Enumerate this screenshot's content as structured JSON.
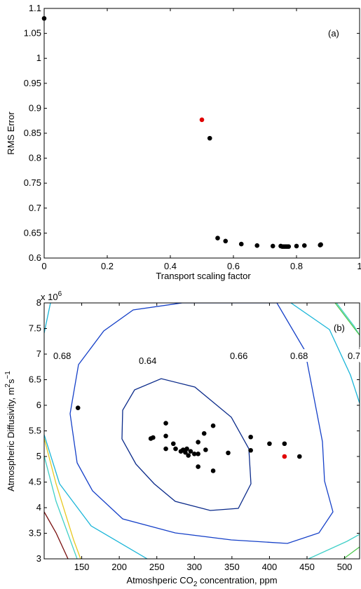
{
  "chart_data": [
    {
      "type": "scatter",
      "panel_label": "(a)",
      "xlabel": "Transport scaling factor",
      "ylabel": "RMS Error",
      "xlim": [
        0,
        1
      ],
      "ylim": [
        0.6,
        1.1
      ],
      "xticks": [
        "0",
        "0.2",
        "0.4",
        "0.6",
        "0.8",
        "1"
      ],
      "yticks": [
        "0.6",
        "0.65",
        "0.7",
        "0.75",
        "0.8",
        "0.85",
        "0.9",
        "0.95",
        "1",
        "1.05",
        "1.1"
      ],
      "colors": {
        "points": "#000000",
        "highlight": "#e00000"
      },
      "points": [
        [
          0.0,
          1.08
        ],
        [
          0.525,
          0.84
        ],
        [
          0.55,
          0.64
        ],
        [
          0.575,
          0.634
        ],
        [
          0.625,
          0.628
        ],
        [
          0.675,
          0.625
        ],
        [
          0.725,
          0.624
        ],
        [
          0.75,
          0.624
        ],
        [
          0.755,
          0.623
        ],
        [
          0.76,
          0.623
        ],
        [
          0.765,
          0.623
        ],
        [
          0.77,
          0.623
        ],
        [
          0.775,
          0.623
        ],
        [
          0.8,
          0.624
        ],
        [
          0.825,
          0.625
        ],
        [
          0.875,
          0.626
        ],
        [
          0.877,
          0.627
        ]
      ],
      "highlight": [
        [
          0.5,
          0.877
        ]
      ]
    },
    {
      "type": "contour",
      "panel_label": "(b)",
      "xlabel_pre": "Atmoshperic CO",
      "xlabel_sub": "2",
      "xlabel_post": " concentration, ppm",
      "ylabel_pre": "Atmospheric Diffusivity, m",
      "ylabel_sup1": "2",
      "ylabel_mid": "s",
      "ylabel_sup2": "−1",
      "exponent_pre": "x 10",
      "exponent_sup": "6",
      "xlim": [
        100,
        520
      ],
      "ylim": [
        3,
        8
      ],
      "xticks": [
        "150",
        "200",
        "250",
        "300",
        "350",
        "400",
        "450",
        "500"
      ],
      "yticks": [
        "3",
        "3.5",
        "4",
        "4.5",
        "5",
        "5.5",
        "6",
        "6.5",
        "7",
        "7.5",
        "8"
      ],
      "contour_labels": [
        "0.64",
        "0.66",
        "0.68",
        "0.68",
        "0.7"
      ],
      "colors": {
        "c064": "#0a2a8a",
        "c066": "#1540c8",
        "c068": "#19b5d8",
        "c070": "#40d0c8",
        "green": "#50c850",
        "yellow": "#e8c820",
        "darkred": "#7a1010",
        "points": "#000000",
        "highlight": "#e00000"
      },
      "points": [
        [
          145,
          5.95
        ],
        [
          242,
          5.35
        ],
        [
          245,
          5.37
        ],
        [
          262,
          5.65
        ],
        [
          262,
          5.4
        ],
        [
          262,
          5.15
        ],
        [
          272,
          5.25
        ],
        [
          275,
          5.15
        ],
        [
          282,
          5.1
        ],
        [
          285,
          5.13
        ],
        [
          288,
          5.08
        ],
        [
          290,
          5.15
        ],
        [
          292,
          5.02
        ],
        [
          295,
          5.1
        ],
        [
          300,
          5.05
        ],
        [
          305,
          5.05
        ],
        [
          305,
          5.28
        ],
        [
          305,
          4.8
        ],
        [
          313,
          5.45
        ],
        [
          315,
          5.13
        ],
        [
          325,
          5.6
        ],
        [
          325,
          4.72
        ],
        [
          345,
          5.07
        ],
        [
          375,
          5.38
        ],
        [
          375,
          5.12
        ],
        [
          400,
          5.25
        ],
        [
          420,
          5.25
        ],
        [
          440,
          5.0
        ]
      ],
      "highlight": [
        [
          420,
          5.0
        ]
      ]
    }
  ]
}
